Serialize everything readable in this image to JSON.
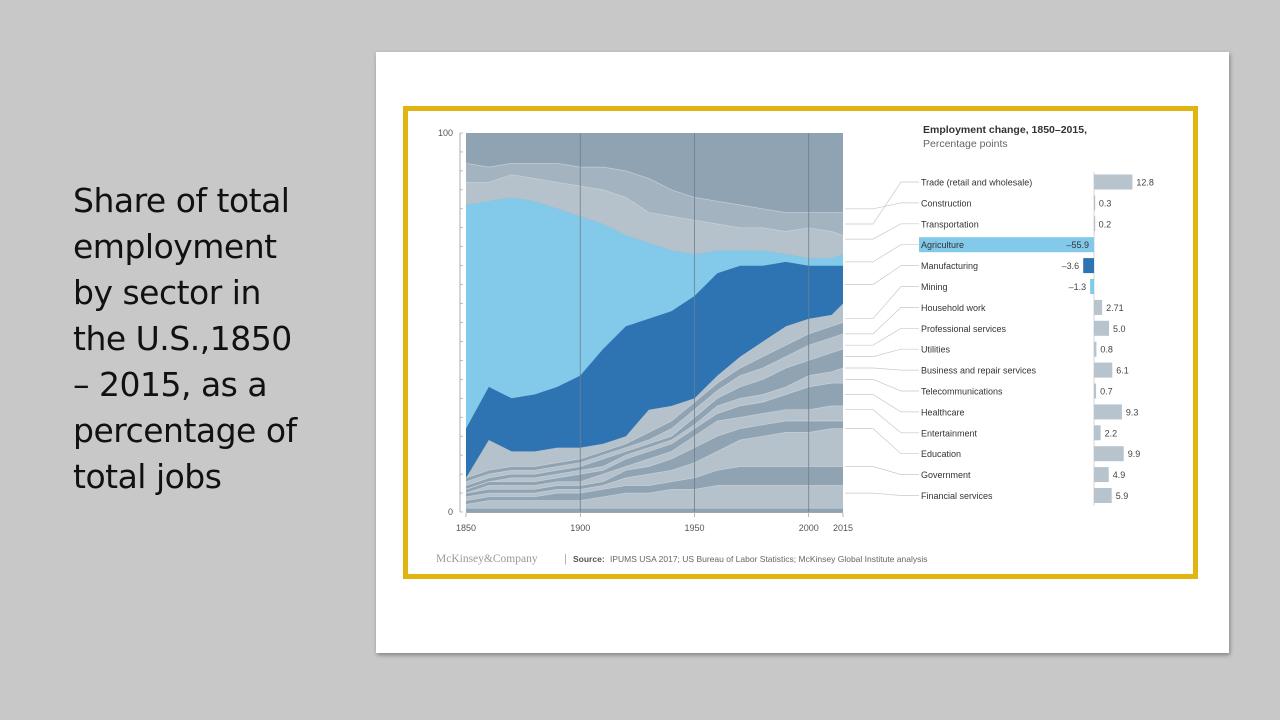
{
  "slide": {
    "title_lines": [
      "Share of total",
      "employment",
      "by sector in",
      "the U.S.,1850",
      "– 2015, as a",
      "percentage of",
      "total jobs"
    ]
  },
  "colors": {
    "background": "#c7c8c7",
    "frame": "#e0b512",
    "agriculture": "#83c9ea",
    "manufacturing": "#2e74b2",
    "mining": "#83c9ea",
    "other_dark": "#8fa3b3",
    "other_light": "#b5c1cb",
    "band_separator": "#d6dde3"
  },
  "chart_data": [
    {
      "type": "area",
      "stacked": true,
      "x": [
        1850,
        1860,
        1870,
        1880,
        1890,
        1900,
        1910,
        1920,
        1930,
        1940,
        1950,
        1960,
        1970,
        1980,
        1990,
        2000,
        2010,
        2015
      ],
      "xticks": [
        "1850",
        "1900",
        "1950",
        "2000",
        "2015"
      ],
      "ylim": [
        0,
        100
      ],
      "yticks": [
        "0",
        "100"
      ],
      "grid_x": [
        1900,
        1950,
        2000
      ],
      "highlighted_series": [
        {
          "name": "Agriculture",
          "lower": [
            10,
            20,
            17,
            17,
            18,
            19,
            21,
            23,
            27,
            30,
            36,
            42,
            46,
            50,
            52,
            54,
            55,
            55
          ],
          "upper": [
            81,
            82,
            83,
            82,
            80,
            78,
            76,
            73,
            71,
            69,
            68,
            69,
            69,
            69,
            68,
            67,
            67,
            68
          ]
        },
        {
          "name": "Manufacturing",
          "lower": [
            9,
            19,
            16,
            16,
            17,
            17,
            18,
            20,
            27,
            28,
            30,
            36,
            41,
            45,
            49,
            51,
            52,
            55
          ],
          "upper": [
            22,
            33,
            30,
            31,
            33,
            36,
            43,
            49,
            51,
            53,
            57,
            63,
            65,
            65,
            66,
            65,
            65,
            65
          ]
        }
      ],
      "series_boundaries_bottom_up": [
        [
          1,
          1,
          1,
          1,
          1,
          1,
          1,
          1,
          1,
          1,
          1,
          1,
          1,
          1,
          1,
          1,
          1,
          1
        ],
        [
          2,
          3,
          3,
          3,
          3,
          3,
          4,
          5,
          5,
          6,
          6,
          7,
          7,
          7,
          7,
          7,
          7,
          7
        ],
        [
          3,
          4,
          4,
          4,
          5,
          5,
          6,
          7,
          7,
          8,
          9,
          11,
          12,
          12,
          12,
          12,
          12,
          12
        ],
        [
          4,
          5,
          5,
          5,
          6,
          6,
          7,
          9,
          10,
          11,
          13,
          16,
          19,
          20,
          21,
          21,
          22,
          22
        ],
        [
          5,
          6,
          6,
          6,
          7,
          7,
          8,
          11,
          12,
          14,
          17,
          20,
          22,
          23,
          24,
          24,
          24,
          24
        ],
        [
          5,
          7,
          7,
          7,
          8,
          8,
          10,
          12,
          14,
          16,
          20,
          24,
          25,
          26,
          27,
          27,
          28,
          28
        ],
        [
          6,
          8,
          8,
          8,
          9,
          10,
          11,
          14,
          16,
          18,
          22,
          26,
          28,
          29,
          31,
          33,
          34,
          34
        ],
        [
          6,
          8,
          9,
          9,
          10,
          11,
          12,
          15,
          17,
          19,
          23,
          28,
          30,
          31,
          33,
          36,
          37,
          38
        ],
        [
          7,
          9,
          10,
          10,
          11,
          12,
          14,
          16,
          18,
          20,
          25,
          30,
          33,
          35,
          38,
          40,
          42,
          43
        ],
        [
          8,
          10,
          11,
          11,
          12,
          13,
          15,
          17,
          19,
          22,
          27,
          32,
          36,
          38,
          41,
          44,
          46,
          47
        ],
        [
          9,
          11,
          12,
          12,
          13,
          14,
          16,
          18,
          21,
          24,
          29,
          34,
          38,
          41,
          44,
          47,
          49,
          50
        ]
      ],
      "upper_bands": [
        [
          87,
          87,
          89,
          88,
          87,
          86,
          85,
          83,
          79,
          78,
          77,
          76,
          75,
          75,
          74,
          75,
          74,
          73
        ],
        [
          92,
          91,
          92,
          92,
          92,
          91,
          91,
          90,
          88,
          85,
          83,
          82,
          81,
          80,
          79,
          79,
          79,
          79
        ]
      ]
    },
    {
      "type": "bar",
      "title": "Employment change, 1850–2015,",
      "subtitle": "Percentage points",
      "categories": [
        "Trade (retail and wholesale)",
        "Construction",
        "Transportation",
        "Agriculture",
        "Manufacturing",
        "Mining",
        "Household work",
        "Professional services",
        "Utilities",
        "Business and repair services",
        "Telecommunications",
        "Healthcare",
        "Entertainment",
        "Education",
        "Government",
        "Financial services"
      ],
      "values": [
        12.8,
        0.3,
        0.2,
        -55.9,
        -3.6,
        -1.3,
        2.71,
        5.0,
        0.8,
        6.1,
        0.7,
        9.3,
        2.2,
        9.9,
        4.9,
        5.9
      ],
      "value_labels": [
        "12.8",
        "0.3",
        "0.2",
        "–55.9",
        "–3.6",
        "–1.3",
        "2.71",
        "5.0",
        "0.8",
        "6.1",
        "0.7",
        "9.3",
        "2.2",
        "9.9",
        "4.9",
        "5.9"
      ],
      "highlighted": {
        "Agriculture": "#83c9ea",
        "Manufacturing": "#2e74b2",
        "Mining": "#83c9ea"
      }
    }
  ],
  "footer": {
    "brand": "McKinsey&Company",
    "separator": "|",
    "source_label": "Source:",
    "source_text": "IPUMS USA 2017; US Bureau of Labor Statistics; McKinsey Global Institute analysis"
  }
}
